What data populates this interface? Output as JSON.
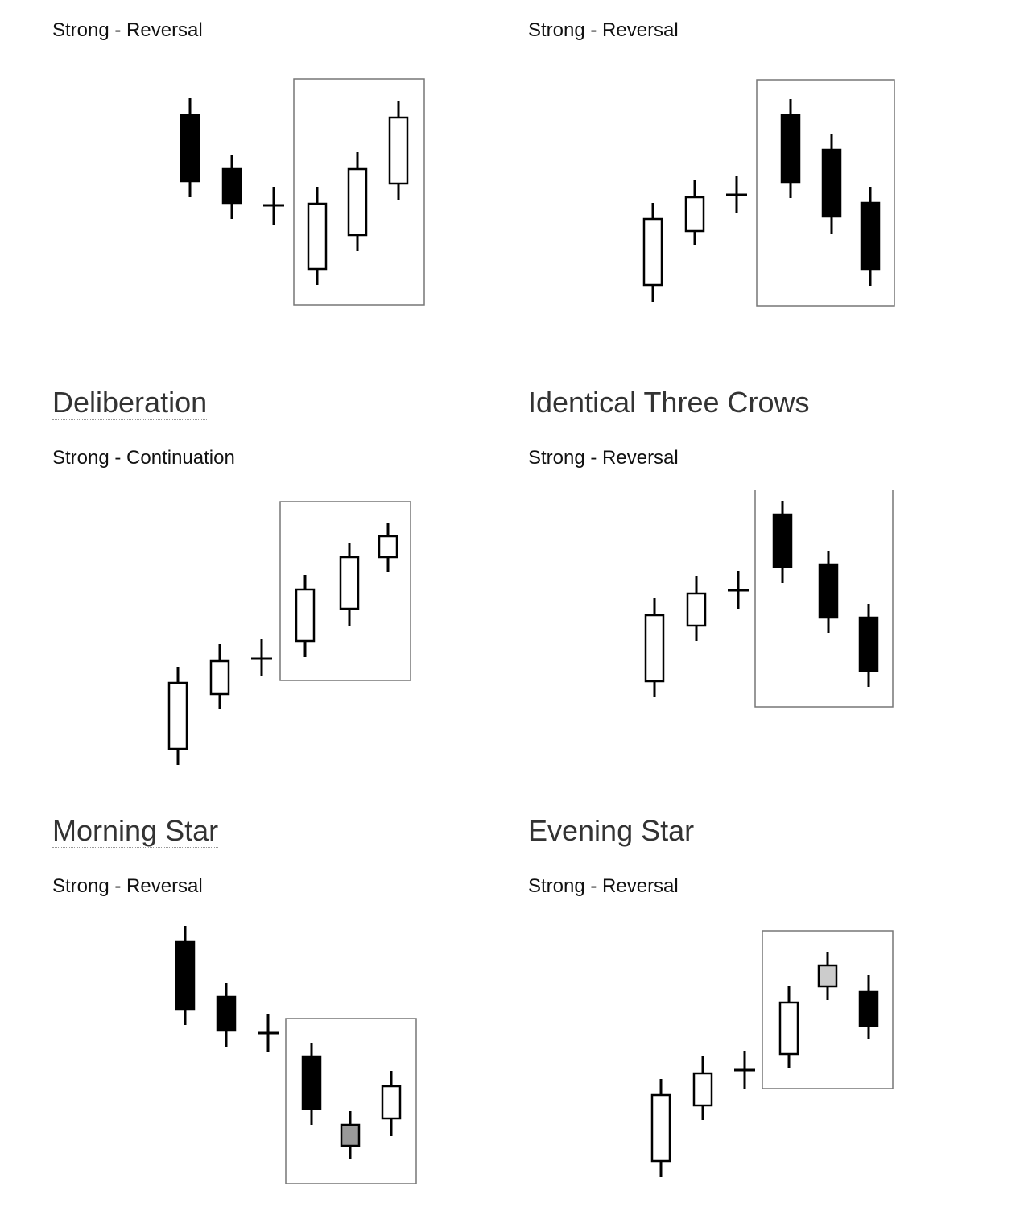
{
  "sections": [
    {
      "subtitle": "Strong - Reversal"
    },
    {
      "subtitle": "Strong - Reversal"
    },
    {
      "title": "Deliberation",
      "subtitle": "Strong - Continuation"
    },
    {
      "title": "Identical Three Crows",
      "subtitle": "Strong - Reversal"
    },
    {
      "title": "Morning Star",
      "subtitle": "Strong - Reversal"
    },
    {
      "title": "Evening Star",
      "subtitle": "Strong - Reversal"
    }
  ]
}
